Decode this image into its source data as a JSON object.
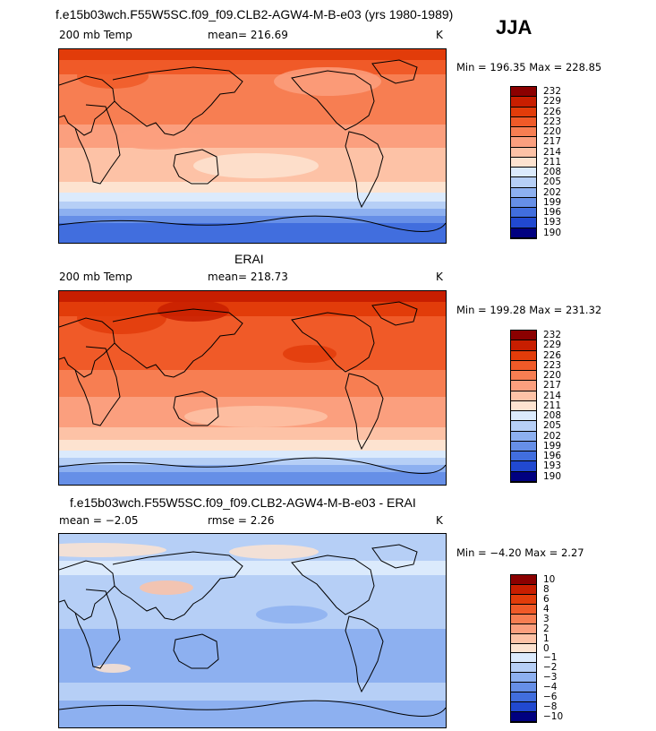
{
  "season": "JJA",
  "panels": [
    {
      "id": "model",
      "title": "f.e15b03wch.F55W5SC.f09_f09.CLB2-AGW4-M-B-e03 (yrs 1980-1989)",
      "left_label": "200 mb Temp",
      "center_label": "mean= 216.69",
      "unit": "K",
      "minmax": "Min = 196.35 Max = 228.85",
      "levels": [
        "232",
        "229",
        "226",
        "223",
        "220",
        "217",
        "214",
        "211",
        "208",
        "205",
        "202",
        "199",
        "196",
        "193",
        "190"
      ],
      "colors": [
        "#8b0000",
        "#c81e00",
        "#e23c0a",
        "#f05a28",
        "#f77e52",
        "#fb9f7e",
        "#fdc2a6",
        "#fde3d0",
        "#dbeafc",
        "#b6cff6",
        "#8db0f0",
        "#668fe7",
        "#416ede",
        "#2149d0",
        "#000080"
      ]
    },
    {
      "id": "obs",
      "title": "ERAI",
      "left_label": "200 mb Temp",
      "center_label": "mean= 218.73",
      "unit": "K",
      "minmax": "Min = 199.28 Max = 231.32",
      "levels": [
        "232",
        "229",
        "226",
        "223",
        "220",
        "217",
        "214",
        "211",
        "208",
        "205",
        "202",
        "199",
        "196",
        "193",
        "190"
      ],
      "colors": [
        "#8b0000",
        "#c81e00",
        "#e23c0a",
        "#f05a28",
        "#f77e52",
        "#fb9f7e",
        "#fdc2a6",
        "#fde3d0",
        "#dbeafc",
        "#b6cff6",
        "#8db0f0",
        "#668fe7",
        "#416ede",
        "#2149d0",
        "#000080"
      ]
    },
    {
      "id": "diff",
      "title": "f.e15b03wch.F55W5SC.f09_f09.CLB2-AGW4-M-B-e03 - ERAI",
      "left_label": "mean =  −2.05",
      "center_label": "rmse =    2.26",
      "unit": "K",
      "minmax": "Min =   −4.20 Max =    2.27",
      "levels": [
        "10",
        "8",
        "6",
        "4",
        "3",
        "2",
        "1",
        "0",
        "−1",
        "−2",
        "−3",
        "−4",
        "−6",
        "−8",
        "−10"
      ],
      "colors": [
        "#8b0000",
        "#c81e00",
        "#e23c0a",
        "#f05a28",
        "#f77e52",
        "#fb9f7e",
        "#fdc2a6",
        "#fde3d0",
        "#dbeafc",
        "#b6cff6",
        "#8db0f0",
        "#668fe7",
        "#416ede",
        "#2149d0",
        "#000080"
      ]
    }
  ]
}
